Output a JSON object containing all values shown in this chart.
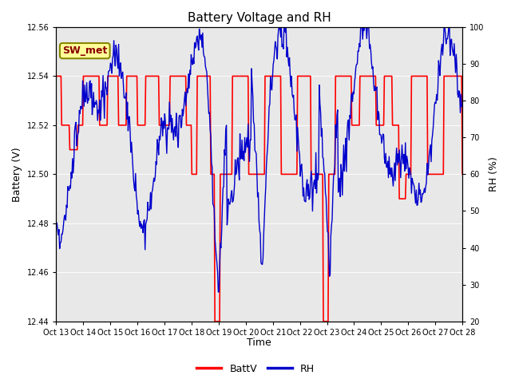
{
  "title": "Battery Voltage and RH",
  "xlabel": "Time",
  "ylabel_left": "Battery (V)",
  "ylabel_right": "RH (%)",
  "annotation": "SW_met",
  "x_tick_labels": [
    "Oct 13",
    "Oct 14",
    "Oct 15",
    "Oct 16",
    "Oct 17",
    "Oct 18",
    "Oct 19",
    "Oct 20",
    "Oct 21",
    "Oct 22",
    "Oct 23",
    "Oct 24",
    "Oct 25",
    "Oct 26",
    "Oct 27",
    "Oct 28"
  ],
  "ylim_left": [
    12.44,
    12.56
  ],
  "ylim_right": [
    20,
    100
  ],
  "yticks_left": [
    12.44,
    12.46,
    12.48,
    12.5,
    12.52,
    12.54,
    12.56
  ],
  "yticks_right": [
    20,
    30,
    40,
    50,
    60,
    70,
    80,
    90,
    100
  ],
  "bg_color": "#e8e8e8",
  "line_color_batt": "#ff0000",
  "line_color_rh": "#0000cc",
  "legend_labels": [
    "BattV",
    "RH"
  ],
  "title_fontsize": 11,
  "axis_fontsize": 9,
  "tick_fontsize": 7,
  "annotation_fontsize": 9,
  "annotation_color": "#8B0000",
  "annotation_bg": "#ffff99",
  "annotation_edge": "#888800",
  "figsize": [
    6.4,
    4.8
  ],
  "dpi": 100
}
